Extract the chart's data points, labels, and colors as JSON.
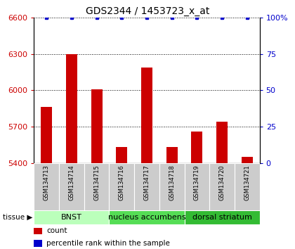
{
  "title": "GDS2344 / 1453723_x_at",
  "samples": [
    "GSM134713",
    "GSM134714",
    "GSM134715",
    "GSM134716",
    "GSM134717",
    "GSM134718",
    "GSM134719",
    "GSM134720",
    "GSM134721"
  ],
  "counts": [
    5860,
    6300,
    6010,
    5530,
    6190,
    5535,
    5660,
    5740,
    5450
  ],
  "percentiles": [
    100,
    100,
    100,
    100,
    100,
    100,
    100,
    100,
    100
  ],
  "ylim_left": [
    5400,
    6600
  ],
  "ylim_right": [
    0,
    100
  ],
  "yticks_left": [
    5400,
    5700,
    6000,
    6300,
    6600
  ],
  "yticks_right": [
    0,
    25,
    50,
    75,
    100
  ],
  "bar_color": "#cc0000",
  "dot_color": "#0000cc",
  "tissue_groups": [
    {
      "label": "BNST",
      "start": 0,
      "end": 3,
      "color": "#bbffbb"
    },
    {
      "label": "nucleus accumbens",
      "start": 3,
      "end": 6,
      "color": "#55dd55"
    },
    {
      "label": "dorsal striatum",
      "start": 6,
      "end": 9,
      "color": "#33bb33"
    }
  ],
  "left_tick_color": "#cc0000",
  "right_tick_color": "#0000cc",
  "bar_width": 0.45,
  "sample_bg_color": "#cccccc",
  "legend_count_color": "#cc0000",
  "legend_pct_color": "#0000cc",
  "title_fontsize": 10,
  "tick_fontsize": 8,
  "sample_fontsize": 6,
  "tissue_fontsize": 8,
  "legend_fontsize": 7.5
}
